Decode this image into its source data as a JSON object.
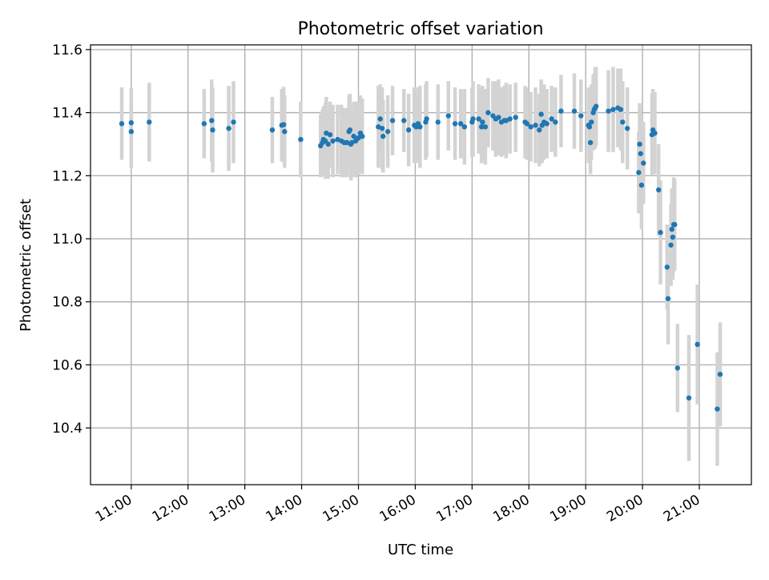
{
  "chart_data": {
    "type": "scatter",
    "title": "Photometric offset variation",
    "xlabel": "UTC time",
    "ylabel": "Photometric offset",
    "x_ticks": [
      "11:00",
      "12:00",
      "13:00",
      "14:00",
      "15:00",
      "16:00",
      "17:00",
      "18:00",
      "19:00",
      "20:00",
      "21:00"
    ],
    "y_ticks": [
      "10.4",
      "10.6",
      "10.8",
      "11.0",
      "11.2",
      "11.4",
      "11.6"
    ],
    "xlim": [
      "10:17",
      "21:55"
    ],
    "ylim": [
      10.22,
      11.615
    ],
    "grid": true,
    "colors": {
      "marker": "#1f77b4",
      "errorbar": "#d3d3d3",
      "grid": "#b0b0b0"
    },
    "points": [
      [
        "10:50",
        11.365,
        0.115
      ],
      [
        "11:00",
        11.368,
        0.11
      ],
      [
        "11:00",
        11.34,
        0.115
      ],
      [
        "11:19",
        11.37,
        0.125
      ],
      [
        "12:17",
        11.365,
        0.11
      ],
      [
        "12:25",
        11.375,
        0.13
      ],
      [
        "12:26",
        11.345,
        0.135
      ],
      [
        "12:43",
        11.35,
        0.135
      ],
      [
        "12:48",
        11.37,
        0.13
      ],
      [
        "13:29",
        11.345,
        0.105
      ],
      [
        "13:39",
        11.36,
        0.115
      ],
      [
        "13:41",
        11.362,
        0.12
      ],
      [
        "13:42",
        11.34,
        0.115
      ],
      [
        "13:59",
        11.315,
        0.12
      ],
      [
        "14:20",
        11.295,
        0.1
      ],
      [
        "14:22",
        11.305,
        0.105
      ],
      [
        "14:23",
        11.315,
        0.105
      ],
      [
        "14:25",
        11.31,
        0.12
      ],
      [
        "14:26",
        11.335,
        0.115
      ],
      [
        "14:28",
        11.3,
        0.11
      ],
      [
        "14:30",
        11.33,
        0.105
      ],
      [
        "14:33",
        11.31,
        0.115
      ],
      [
        "14:38",
        11.315,
        0.11
      ],
      [
        "14:42",
        11.31,
        0.115
      ],
      [
        "14:45",
        11.305,
        0.11
      ],
      [
        "14:48",
        11.305,
        0.11
      ],
      [
        "14:50",
        11.34,
        0.115
      ],
      [
        "14:51",
        11.345,
        0.115
      ],
      [
        "14:52",
        11.3,
        0.115
      ],
      [
        "14:53",
        11.305,
        0.11
      ],
      [
        "14:55",
        11.325,
        0.11
      ],
      [
        "14:57",
        11.31,
        0.115
      ],
      [
        "14:58",
        11.315,
        0.12
      ],
      [
        "15:00",
        11.32,
        0.115
      ],
      [
        "15:02",
        11.335,
        0.12
      ],
      [
        "15:04",
        11.325,
        0.12
      ],
      [
        "15:21",
        11.355,
        0.13
      ],
      [
        "15:23",
        11.38,
        0.11
      ],
      [
        "15:25",
        11.35,
        0.13
      ],
      [
        "15:26",
        11.325,
        0.115
      ],
      [
        "15:31",
        11.34,
        0.115
      ],
      [
        "15:36",
        11.375,
        0.11
      ],
      [
        "15:48",
        11.375,
        0.1
      ],
      [
        "15:53",
        11.345,
        0.115
      ],
      [
        "15:59",
        11.36,
        0.12
      ],
      [
        "16:01",
        11.355,
        0.115
      ],
      [
        "16:03",
        11.365,
        0.115
      ],
      [
        "16:05",
        11.355,
        0.13
      ],
      [
        "16:11",
        11.37,
        0.12
      ],
      [
        "16:12",
        11.38,
        0.12
      ],
      [
        "16:24",
        11.37,
        0.12
      ],
      [
        "16:35",
        11.39,
        0.11
      ],
      [
        "16:42",
        11.365,
        0.115
      ],
      [
        "16:48",
        11.365,
        0.11
      ],
      [
        "16:52",
        11.355,
        0.12
      ],
      [
        "17:00",
        11.37,
        0.11
      ],
      [
        "17:01",
        11.38,
        0.12
      ],
      [
        "17:07",
        11.38,
        0.11
      ],
      [
        "17:10",
        11.355,
        0.115
      ],
      [
        "17:11",
        11.37,
        0.115
      ],
      [
        "17:14",
        11.355,
        0.12
      ],
      [
        "17:17",
        11.4,
        0.11
      ],
      [
        "17:22",
        11.39,
        0.11
      ],
      [
        "17:25",
        11.38,
        0.12
      ],
      [
        "17:28",
        11.385,
        0.12
      ],
      [
        "17:31",
        11.37,
        0.11
      ],
      [
        "17:34",
        11.375,
        0.11
      ],
      [
        "17:36",
        11.375,
        0.12
      ],
      [
        "17:40",
        11.38,
        0.11
      ],
      [
        "17:46",
        11.385,
        0.11
      ],
      [
        "17:56",
        11.37,
        0.115
      ],
      [
        "17:58",
        11.365,
        0.115
      ],
      [
        "18:02",
        11.355,
        0.11
      ],
      [
        "18:07",
        11.36,
        0.12
      ],
      [
        "18:11",
        11.345,
        0.115
      ],
      [
        "18:13",
        11.395,
        0.11
      ],
      [
        "18:14",
        11.36,
        0.12
      ],
      [
        "18:16",
        11.37,
        0.12
      ],
      [
        "18:19",
        11.365,
        0.11
      ],
      [
        "18:24",
        11.38,
        0.105
      ],
      [
        "18:28",
        11.37,
        0.11
      ],
      [
        "18:34",
        11.405,
        0.115
      ],
      [
        "18:48",
        11.405,
        0.12
      ],
      [
        "18:55",
        11.39,
        0.115
      ],
      [
        "19:03",
        11.36,
        0.12
      ],
      [
        "19:04",
        11.355,
        0.115
      ],
      [
        "19:05",
        11.305,
        0.1
      ],
      [
        "19:06",
        11.37,
        0.12
      ],
      [
        "19:08",
        11.4,
        0.12
      ],
      [
        "19:09",
        11.41,
        0.115
      ],
      [
        "19:10",
        11.415,
        0.13
      ],
      [
        "19:11",
        11.42,
        0.125
      ],
      [
        "19:24",
        11.405,
        0.13
      ],
      [
        "19:29",
        11.41,
        0.135
      ],
      [
        "19:34",
        11.415,
        0.125
      ],
      [
        "19:37",
        11.41,
        0.13
      ],
      [
        "19:39",
        11.37,
        0.13
      ],
      [
        "19:44",
        11.35,
        0.13
      ],
      [
        "19:56",
        11.21,
        0.13
      ],
      [
        "19:57",
        11.3,
        0.13
      ],
      [
        "19:58",
        11.27,
        0.13
      ],
      [
        "19:59",
        11.17,
        0.14
      ],
      [
        "20:01",
        11.24,
        0.13
      ],
      [
        "20:10",
        11.33,
        0.13
      ],
      [
        "20:11",
        11.345,
        0.13
      ],
      [
        "20:13",
        11.335,
        0.13
      ],
      [
        "20:17",
        11.155,
        0.145
      ],
      [
        "20:19",
        11.02,
        0.165
      ],
      [
        "20:26",
        10.91,
        0.135
      ],
      [
        "20:27",
        10.81,
        0.145
      ],
      [
        "20:30",
        10.98,
        0.13
      ],
      [
        "20:31",
        11.03,
        0.13
      ],
      [
        "20:32",
        11.005,
        0.135
      ],
      [
        "20:33",
        11.045,
        0.15
      ],
      [
        "20:34",
        11.045,
        0.145
      ],
      [
        "20:37",
        10.59,
        0.14
      ],
      [
        "20:49",
        10.495,
        0.2
      ],
      [
        "20:58",
        10.665,
        0.19
      ],
      [
        "21:19",
        10.46,
        0.18
      ],
      [
        "21:22",
        10.57,
        0.165
      ]
    ]
  }
}
